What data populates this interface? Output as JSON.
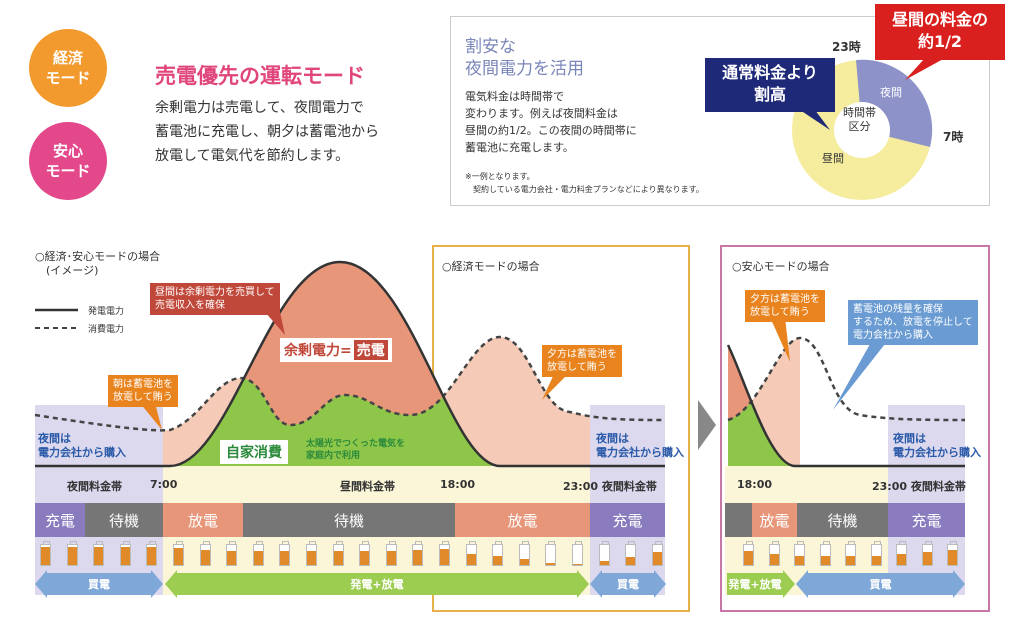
{
  "modes": {
    "economy": "経済\nモード",
    "safety": "安心\nモード"
  },
  "header": {
    "title": "売電優先の運転モード",
    "body": "余剰電力は売電して、夜間電力で\n蓄電池に充電し、朝夕は蓄電池から\n放電して電気代を節約します。"
  },
  "rate_box": {
    "title": "割安な\n夜間電力を活用",
    "body": "電気料金は時間帯で\n変わります。例えば夜間料金は\n昼間の約1/2。この夜間の時間帯に\n蓄電池に充電します。",
    "note": "※一例となります。\n　契約している電力会社・電力料金プランなどにより異なります。",
    "pie": {
      "label_23": "23時",
      "label_7": "7時",
      "night": "夜間",
      "day": "昼間",
      "center": "時間帯\n区分"
    },
    "callout_day": "通常料金より\n割高",
    "callout_night": "昼間の料金の\n約1/2",
    "colors": {
      "night": "#8d93c8",
      "day": "#f6ec9e"
    }
  },
  "main": {
    "heading": "○経済･安心モードの場合\n　(イメージ)",
    "legend_gen": "発電電力",
    "legend_use": "消費電力",
    "callout_sell": "昼間は余剰電力を売買して\n売電収入を確保",
    "callout_morning": "朝は蓄電池を\n放電して賄う",
    "surplus": "余剰電力=",
    "sell": "売電",
    "self_use": "自家消費",
    "self_use_desc": "太陽光でつくった電気を\n家庭内で利用",
    "night_buy": "夜間は\n電力会社から購入",
    "times": {
      "night_band": "夜間料金帯",
      "t7": "7:00",
      "day_band": "昼間料金帯",
      "t18": "18:00",
      "t23": "23:00 夜間料金帯"
    },
    "segments": [
      "充電",
      "待機",
      "放電",
      "待機",
      "放電",
      "充電"
    ],
    "arrows": {
      "buy": "買電",
      "gen_discharge": "発電+放電"
    },
    "battery_levels": [
      0.9,
      0.9,
      0.9,
      0.9,
      0.9,
      0.85,
      0.75,
      0.7,
      0.7,
      0.7,
      0.7,
      0.7,
      0.7,
      0.7,
      0.75,
      0.8,
      0.55,
      0.45,
      0.3,
      0.1,
      0.05,
      0.2,
      0.4,
      0.65
    ]
  },
  "economy": {
    "heading": "○経済モードの場合",
    "callout_evening": "夕方は蓄電池を\n放電して賄う",
    "night_buy": "夜間は\n電力会社から購入"
  },
  "safety": {
    "heading": "○安心モードの場合",
    "callout_evening": "夕方は蓄電池を\n放電して賄う",
    "callout_stop": "蓄電池の残量を確保\nするため、放電を停止して\n電力会社から購入",
    "night_buy": "夜間は\n電力会社から購入",
    "times": {
      "t18": "18:00",
      "t23": "23:00 夜間料金帯"
    },
    "segments": [
      "放電",
      "待機",
      "充電"
    ],
    "arrows": {
      "gen_discharge": "発電+放電",
      "buy": "買電"
    },
    "battery_levels": [
      0.7,
      0.55,
      0.45,
      0.45,
      0.45,
      0.45,
      0.55,
      0.65,
      0.75
    ]
  },
  "colors": {
    "economy": "#f39a2f",
    "safety": "#e2488a",
    "charge": "#8a7bbf",
    "standby": "#767676",
    "discharge": "#e8967a",
    "buy": "#7fa7d8",
    "gen": "#9ccc50"
  }
}
